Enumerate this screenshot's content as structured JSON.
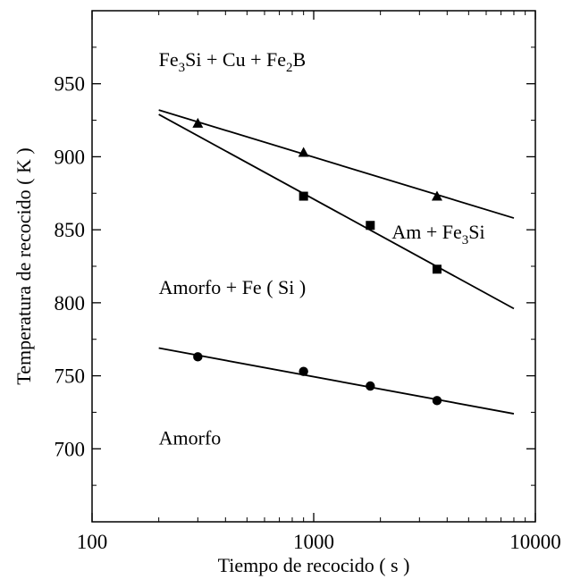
{
  "chart_data": {
    "type": "scatter",
    "x_scale": "log",
    "xlim": [
      100,
      10000
    ],
    "ylim": [
      650,
      1000
    ],
    "xticks": [
      100,
      1000,
      10000
    ],
    "yticks": [
      700,
      750,
      800,
      850,
      900,
      950
    ],
    "xtick_labels": [
      "100",
      "1000",
      "10000"
    ],
    "ytick_labels": [
      "700",
      "750",
      "800",
      "850",
      "900",
      "950"
    ],
    "xlabel": "Tiempo de recocido ( s )",
    "ylabel": "Temperatura de recocido ( K )",
    "grid": false,
    "series": [
      {
        "marker": "triangle",
        "points": [
          {
            "x": 300,
            "y": 923
          },
          {
            "x": 900,
            "y": 903
          },
          {
            "x": 3600,
            "y": 873
          }
        ],
        "fit_line": {
          "x": [
            200,
            8000
          ],
          "y": [
            932,
            858
          ]
        }
      },
      {
        "marker": "square",
        "points": [
          {
            "x": 900,
            "y": 873
          },
          {
            "x": 1800,
            "y": 853
          },
          {
            "x": 3600,
            "y": 823
          }
        ],
        "fit_line": {
          "x": [
            200,
            8000
          ],
          "y": [
            929,
            796
          ]
        }
      },
      {
        "marker": "circle",
        "points": [
          {
            "x": 300,
            "y": 763
          },
          {
            "x": 900,
            "y": 753
          },
          {
            "x": 1800,
            "y": 743
          },
          {
            "x": 3600,
            "y": 733
          }
        ],
        "fit_line": {
          "x": [
            200,
            8000
          ],
          "y": [
            769,
            724
          ]
        }
      }
    ],
    "annotations": [
      {
        "id": "fe3si-cu-fe2b",
        "x": 200,
        "y": 962,
        "parts": [
          {
            "t": "Fe"
          },
          {
            "t": "3",
            "sub": true
          },
          {
            "t": "Si + Cu + Fe"
          },
          {
            "t": "2",
            "sub": true
          },
          {
            "t": "B"
          }
        ]
      },
      {
        "id": "am-fe3si",
        "x": 2250,
        "y": 844,
        "parts": [
          {
            "t": "Am + Fe"
          },
          {
            "t": "3",
            "sub": true
          },
          {
            "t": "Si"
          }
        ]
      },
      {
        "id": "amorfo-fe-si",
        "x": 200,
        "y": 806,
        "parts": [
          {
            "t": "Amorfo + Fe ( Si )"
          }
        ]
      },
      {
        "id": "amorfo",
        "x": 200,
        "y": 703,
        "parts": [
          {
            "t": "Amorfo"
          }
        ]
      }
    ]
  }
}
